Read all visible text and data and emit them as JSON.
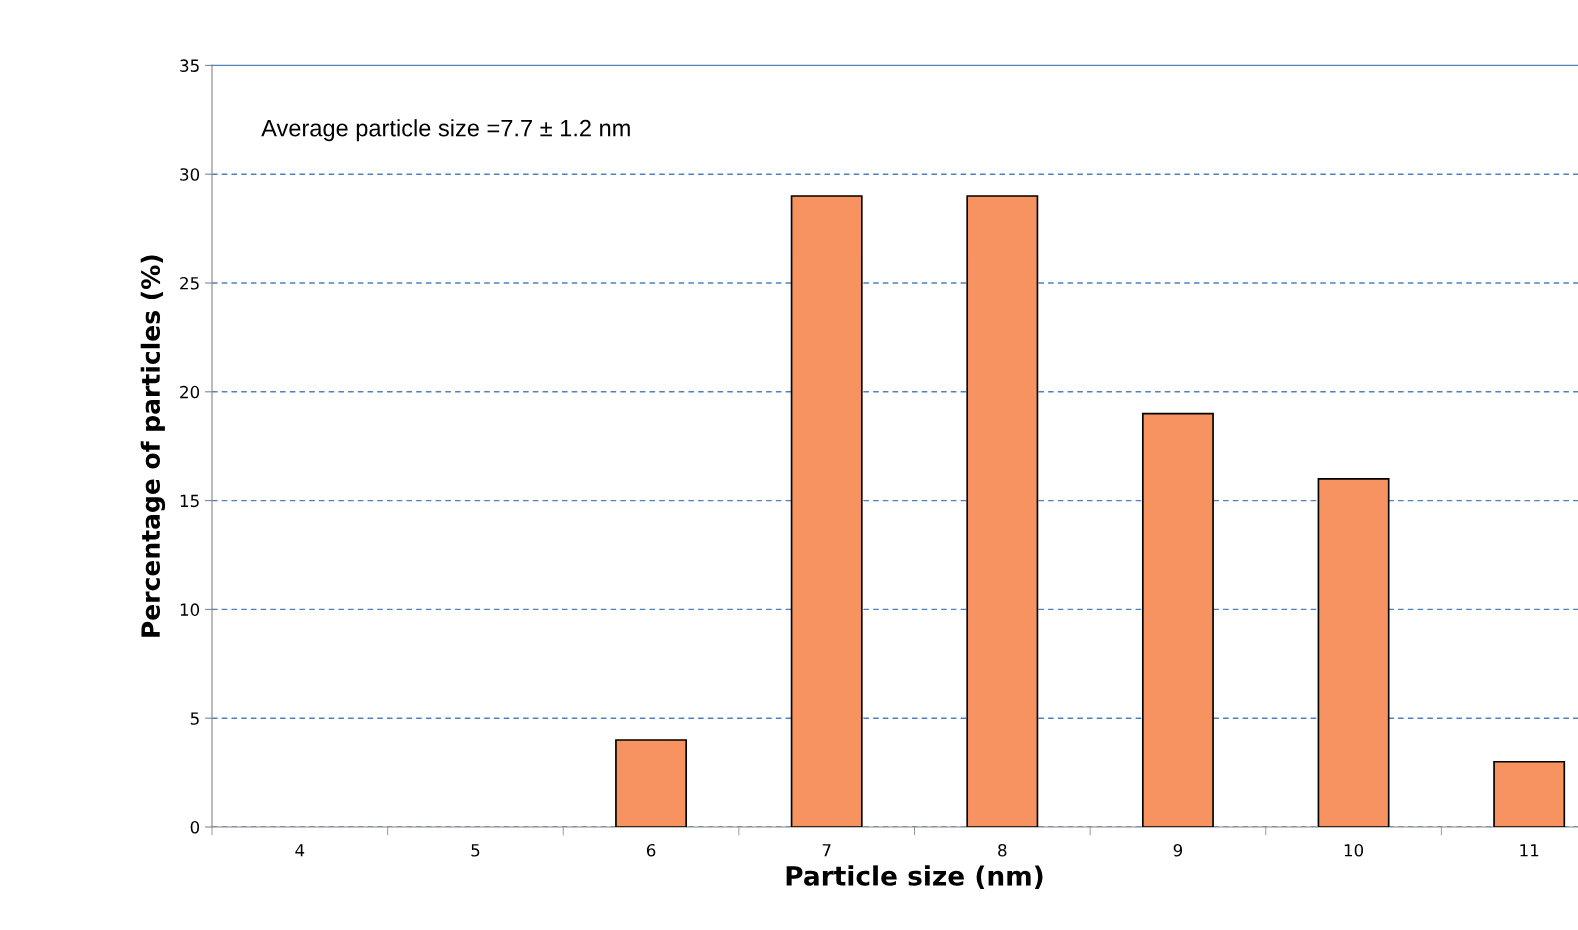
{
  "chart_data": {
    "type": "bar",
    "xlabel": "Particle size (nm)",
    "ylabel": "Percentage of particles (%)",
    "categories": [
      "4",
      "5",
      "6",
      "7",
      "8",
      "9",
      "10",
      "11"
    ],
    "values": [
      0,
      0,
      4,
      29,
      29,
      19,
      16,
      3
    ],
    "color": "#f79361",
    "ylim": [
      0,
      35
    ],
    "yticks": [
      0,
      5,
      10,
      15,
      20,
      25,
      30,
      35
    ],
    "grid": "y",
    "annotations": [
      "Average particle size =7.7 ± 1.2 nm"
    ]
  }
}
